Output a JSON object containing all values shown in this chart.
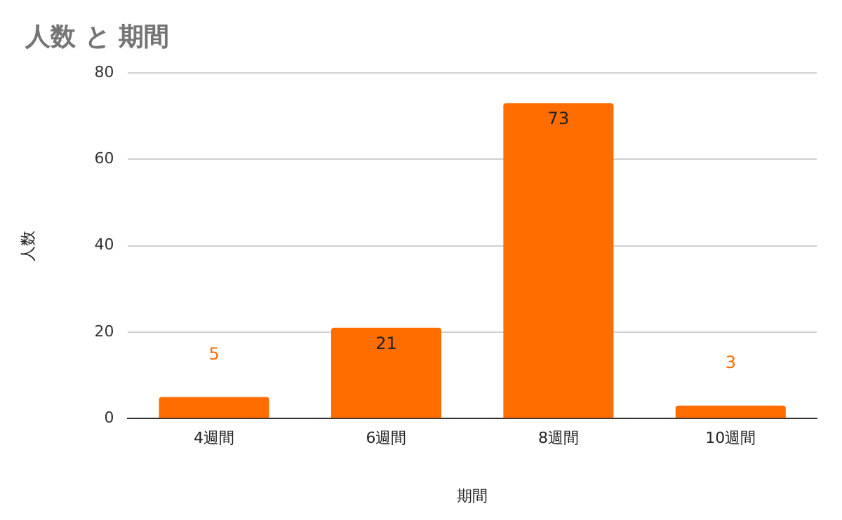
{
  "chart_data": {
    "type": "bar",
    "title": "人数 と 期間",
    "xlabel": "期間",
    "ylabel": "人数",
    "categories": [
      "4週間",
      "6週間",
      "8週間",
      "10週間"
    ],
    "values": [
      5,
      21,
      73,
      3
    ],
    "color": "#ff6d01",
    "ylim": [
      0,
      80
    ],
    "yticks": [
      0,
      20,
      40,
      60,
      80
    ],
    "grid": "y",
    "legend": false,
    "data_labels": true
  }
}
